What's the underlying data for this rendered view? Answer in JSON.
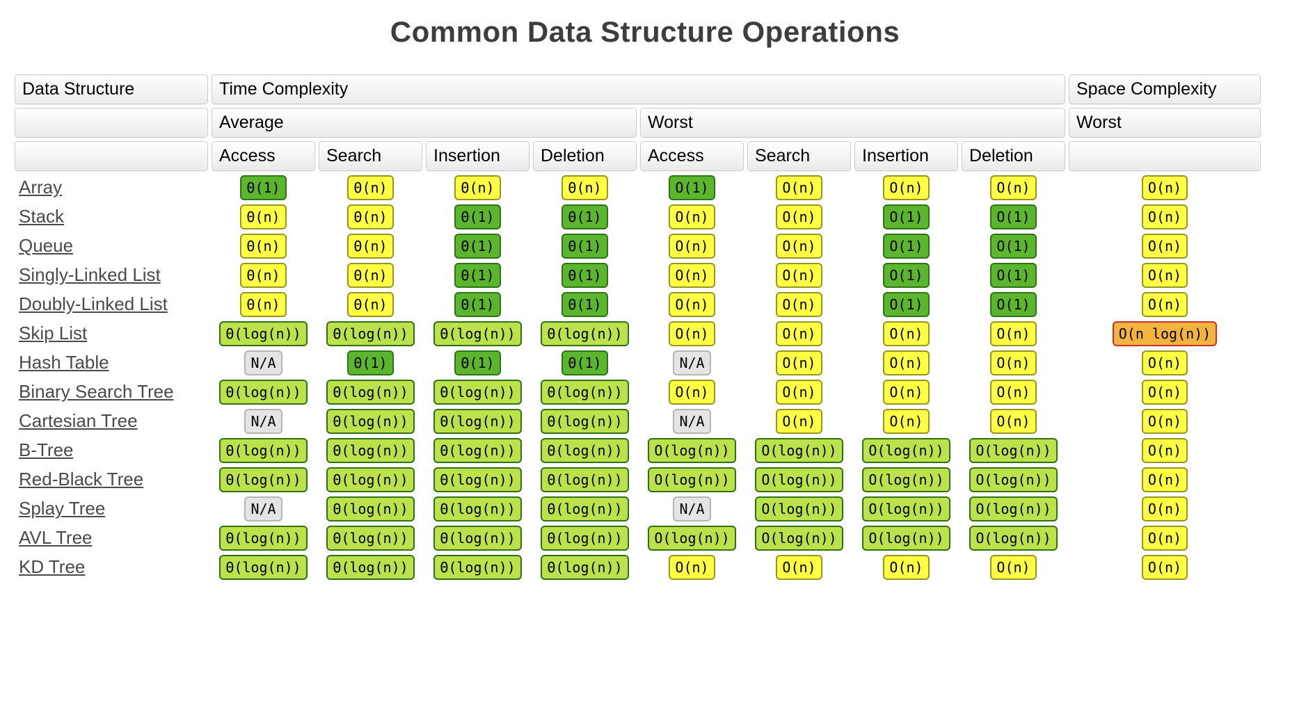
{
  "title": "Common Data Structure Operations",
  "header": {
    "col1": "Data Structure",
    "time": "Time Complexity",
    "space": "Space Complexity",
    "average": "Average",
    "worst": "Worst",
    "space_worst": "Worst",
    "ops": [
      "Access",
      "Search",
      "Insertion",
      "Deletion",
      "Access",
      "Search",
      "Insertion",
      "Deletion"
    ]
  },
  "colors": {
    "excellent_green": "#5bb52d",
    "good_lime": "#bce24b",
    "fair_yellow": "#ffff44",
    "bad_orange": "#f3b43f",
    "bad_orange_border": "#c9302c",
    "na_gray": "#e4e4e4",
    "title_text": "#3d3d3d",
    "link_text": "#4a4a4a"
  },
  "rows": [
    {
      "name": "Array",
      "cells": [
        {
          "t": "Θ(1)",
          "c": "green"
        },
        {
          "t": "Θ(n)",
          "c": "yellow"
        },
        {
          "t": "Θ(n)",
          "c": "yellow"
        },
        {
          "t": "Θ(n)",
          "c": "yellow"
        },
        {
          "t": "O(1)",
          "c": "green"
        },
        {
          "t": "O(n)",
          "c": "yellow"
        },
        {
          "t": "O(n)",
          "c": "yellow"
        },
        {
          "t": "O(n)",
          "c": "yellow"
        },
        {
          "t": "O(n)",
          "c": "yellow"
        }
      ]
    },
    {
      "name": "Stack",
      "cells": [
        {
          "t": "Θ(n)",
          "c": "yellow"
        },
        {
          "t": "Θ(n)",
          "c": "yellow"
        },
        {
          "t": "Θ(1)",
          "c": "green"
        },
        {
          "t": "Θ(1)",
          "c": "green"
        },
        {
          "t": "O(n)",
          "c": "yellow"
        },
        {
          "t": "O(n)",
          "c": "yellow"
        },
        {
          "t": "O(1)",
          "c": "green"
        },
        {
          "t": "O(1)",
          "c": "green"
        },
        {
          "t": "O(n)",
          "c": "yellow"
        }
      ]
    },
    {
      "name": "Queue",
      "cells": [
        {
          "t": "Θ(n)",
          "c": "yellow"
        },
        {
          "t": "Θ(n)",
          "c": "yellow"
        },
        {
          "t": "Θ(1)",
          "c": "green"
        },
        {
          "t": "Θ(1)",
          "c": "green"
        },
        {
          "t": "O(n)",
          "c": "yellow"
        },
        {
          "t": "O(n)",
          "c": "yellow"
        },
        {
          "t": "O(1)",
          "c": "green"
        },
        {
          "t": "O(1)",
          "c": "green"
        },
        {
          "t": "O(n)",
          "c": "yellow"
        }
      ]
    },
    {
      "name": "Singly-Linked List",
      "cells": [
        {
          "t": "Θ(n)",
          "c": "yellow"
        },
        {
          "t": "Θ(n)",
          "c": "yellow"
        },
        {
          "t": "Θ(1)",
          "c": "green"
        },
        {
          "t": "Θ(1)",
          "c": "green"
        },
        {
          "t": "O(n)",
          "c": "yellow"
        },
        {
          "t": "O(n)",
          "c": "yellow"
        },
        {
          "t": "O(1)",
          "c": "green"
        },
        {
          "t": "O(1)",
          "c": "green"
        },
        {
          "t": "O(n)",
          "c": "yellow"
        }
      ]
    },
    {
      "name": "Doubly-Linked List",
      "cells": [
        {
          "t": "Θ(n)",
          "c": "yellow"
        },
        {
          "t": "Θ(n)",
          "c": "yellow"
        },
        {
          "t": "Θ(1)",
          "c": "green"
        },
        {
          "t": "Θ(1)",
          "c": "green"
        },
        {
          "t": "O(n)",
          "c": "yellow"
        },
        {
          "t": "O(n)",
          "c": "yellow"
        },
        {
          "t": "O(1)",
          "c": "green"
        },
        {
          "t": "O(1)",
          "c": "green"
        },
        {
          "t": "O(n)",
          "c": "yellow"
        }
      ]
    },
    {
      "name": "Skip List",
      "cells": [
        {
          "t": "Θ(log(n))",
          "c": "lime"
        },
        {
          "t": "Θ(log(n))",
          "c": "lime"
        },
        {
          "t": "Θ(log(n))",
          "c": "lime"
        },
        {
          "t": "Θ(log(n))",
          "c": "lime"
        },
        {
          "t": "O(n)",
          "c": "yellow"
        },
        {
          "t": "O(n)",
          "c": "yellow"
        },
        {
          "t": "O(n)",
          "c": "yellow"
        },
        {
          "t": "O(n)",
          "c": "yellow"
        },
        {
          "t": "O(n log(n))",
          "c": "orange"
        }
      ]
    },
    {
      "name": "Hash Table",
      "cells": [
        {
          "t": "N/A",
          "c": "gray"
        },
        {
          "t": "Θ(1)",
          "c": "green"
        },
        {
          "t": "Θ(1)",
          "c": "green"
        },
        {
          "t": "Θ(1)",
          "c": "green"
        },
        {
          "t": "N/A",
          "c": "gray"
        },
        {
          "t": "O(n)",
          "c": "yellow"
        },
        {
          "t": "O(n)",
          "c": "yellow"
        },
        {
          "t": "O(n)",
          "c": "yellow"
        },
        {
          "t": "O(n)",
          "c": "yellow"
        }
      ]
    },
    {
      "name": "Binary Search Tree",
      "cells": [
        {
          "t": "Θ(log(n))",
          "c": "lime"
        },
        {
          "t": "Θ(log(n))",
          "c": "lime"
        },
        {
          "t": "Θ(log(n))",
          "c": "lime"
        },
        {
          "t": "Θ(log(n))",
          "c": "lime"
        },
        {
          "t": "O(n)",
          "c": "yellow"
        },
        {
          "t": "O(n)",
          "c": "yellow"
        },
        {
          "t": "O(n)",
          "c": "yellow"
        },
        {
          "t": "O(n)",
          "c": "yellow"
        },
        {
          "t": "O(n)",
          "c": "yellow"
        }
      ]
    },
    {
      "name": "Cartesian Tree",
      "cells": [
        {
          "t": "N/A",
          "c": "gray"
        },
        {
          "t": "Θ(log(n))",
          "c": "lime"
        },
        {
          "t": "Θ(log(n))",
          "c": "lime"
        },
        {
          "t": "Θ(log(n))",
          "c": "lime"
        },
        {
          "t": "N/A",
          "c": "gray"
        },
        {
          "t": "O(n)",
          "c": "yellow"
        },
        {
          "t": "O(n)",
          "c": "yellow"
        },
        {
          "t": "O(n)",
          "c": "yellow"
        },
        {
          "t": "O(n)",
          "c": "yellow"
        }
      ]
    },
    {
      "name": "B-Tree",
      "cells": [
        {
          "t": "Θ(log(n))",
          "c": "lime"
        },
        {
          "t": "Θ(log(n))",
          "c": "lime"
        },
        {
          "t": "Θ(log(n))",
          "c": "lime"
        },
        {
          "t": "Θ(log(n))",
          "c": "lime"
        },
        {
          "t": "O(log(n))",
          "c": "lime"
        },
        {
          "t": "O(log(n))",
          "c": "lime"
        },
        {
          "t": "O(log(n))",
          "c": "lime"
        },
        {
          "t": "O(log(n))",
          "c": "lime"
        },
        {
          "t": "O(n)",
          "c": "yellow"
        }
      ]
    },
    {
      "name": "Red-Black Tree",
      "cells": [
        {
          "t": "Θ(log(n))",
          "c": "lime"
        },
        {
          "t": "Θ(log(n))",
          "c": "lime"
        },
        {
          "t": "Θ(log(n))",
          "c": "lime"
        },
        {
          "t": "Θ(log(n))",
          "c": "lime"
        },
        {
          "t": "O(log(n))",
          "c": "lime"
        },
        {
          "t": "O(log(n))",
          "c": "lime"
        },
        {
          "t": "O(log(n))",
          "c": "lime"
        },
        {
          "t": "O(log(n))",
          "c": "lime"
        },
        {
          "t": "O(n)",
          "c": "yellow"
        }
      ]
    },
    {
      "name": "Splay Tree",
      "cells": [
        {
          "t": "N/A",
          "c": "gray"
        },
        {
          "t": "Θ(log(n))",
          "c": "lime"
        },
        {
          "t": "Θ(log(n))",
          "c": "lime"
        },
        {
          "t": "Θ(log(n))",
          "c": "lime"
        },
        {
          "t": "N/A",
          "c": "gray"
        },
        {
          "t": "O(log(n))",
          "c": "lime"
        },
        {
          "t": "O(log(n))",
          "c": "lime"
        },
        {
          "t": "O(log(n))",
          "c": "lime"
        },
        {
          "t": "O(n)",
          "c": "yellow"
        }
      ]
    },
    {
      "name": "AVL Tree",
      "cells": [
        {
          "t": "Θ(log(n))",
          "c": "lime"
        },
        {
          "t": "Θ(log(n))",
          "c": "lime"
        },
        {
          "t": "Θ(log(n))",
          "c": "lime"
        },
        {
          "t": "Θ(log(n))",
          "c": "lime"
        },
        {
          "t": "O(log(n))",
          "c": "lime"
        },
        {
          "t": "O(log(n))",
          "c": "lime"
        },
        {
          "t": "O(log(n))",
          "c": "lime"
        },
        {
          "t": "O(log(n))",
          "c": "lime"
        },
        {
          "t": "O(n)",
          "c": "yellow"
        }
      ]
    },
    {
      "name": "KD Tree",
      "cells": [
        {
          "t": "Θ(log(n))",
          "c": "lime"
        },
        {
          "t": "Θ(log(n))",
          "c": "lime"
        },
        {
          "t": "Θ(log(n))",
          "c": "lime"
        },
        {
          "t": "Θ(log(n))",
          "c": "lime"
        },
        {
          "t": "O(n)",
          "c": "yellow"
        },
        {
          "t": "O(n)",
          "c": "yellow"
        },
        {
          "t": "O(n)",
          "c": "yellow"
        },
        {
          "t": "O(n)",
          "c": "yellow"
        },
        {
          "t": "O(n)",
          "c": "yellow"
        }
      ]
    }
  ]
}
